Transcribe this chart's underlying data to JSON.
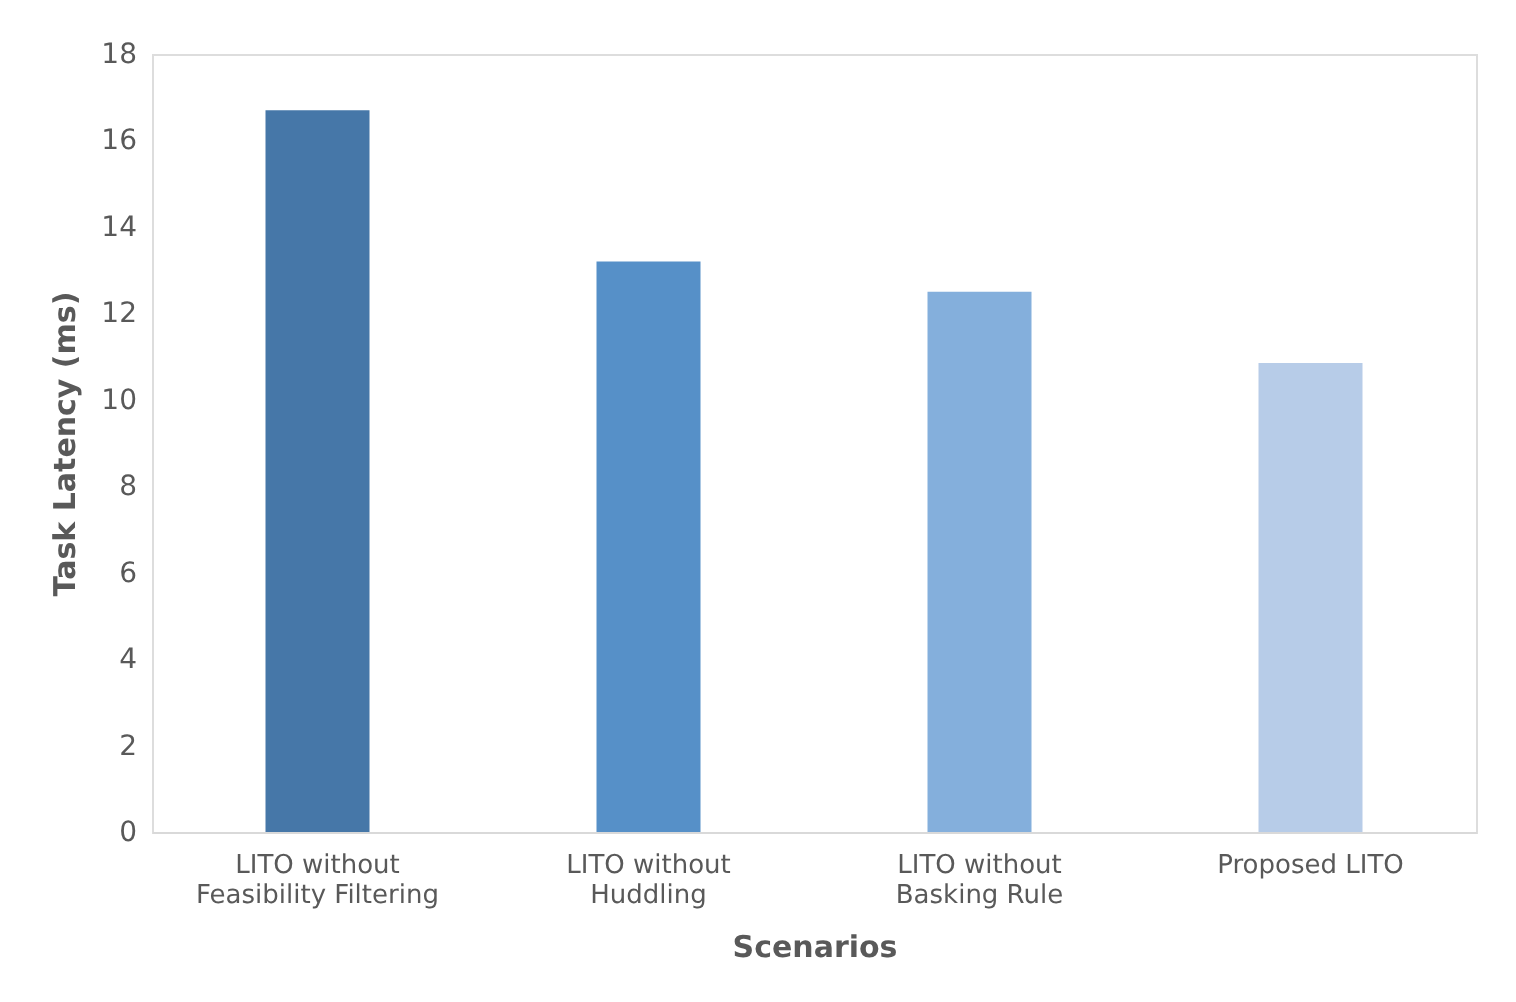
{
  "chart_data": {
    "type": "bar",
    "categories": [
      "LITO without Feasibility Filtering",
      "LITO without Huddling",
      "LITO without Basking Rule",
      "Proposed LITO"
    ],
    "values": [
      16.7,
      13.2,
      12.5,
      10.85
    ],
    "colors": [
      "#4677a8",
      "#5690c8",
      "#84afdc",
      "#b7cce8"
    ],
    "xlabel": "Scenarios",
    "ylabel": "Task Latency (ms)",
    "ylim": [
      0,
      18
    ],
    "yticks": [
      0,
      2,
      4,
      6,
      8,
      10,
      12,
      14,
      16,
      18
    ],
    "grid": false
  }
}
